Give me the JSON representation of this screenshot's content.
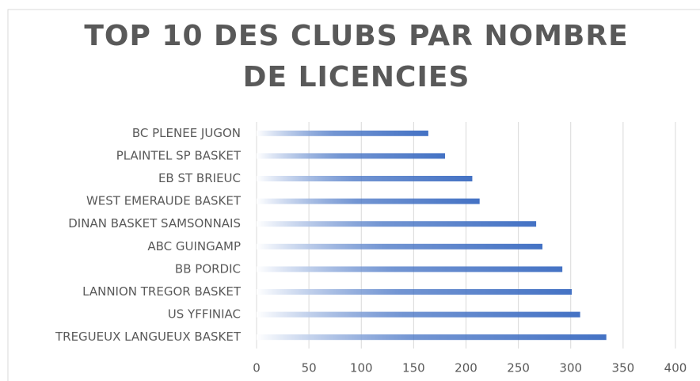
{
  "chart_data": {
    "type": "bar",
    "orientation": "horizontal",
    "title": "TOP 10 DES CLUBS PAR NOMBRE DE LICENCIES",
    "categories": [
      "BC PLENEE JUGON",
      "PLAINTEL SP BASKET",
      "EB ST BRIEUC",
      "WEST EMERAUDE BASKET",
      "DINAN BASKET SAMSONNAIS",
      "ABC GUINGAMP",
      "BB PORDIC",
      "LANNION TREGOR BASKET",
      "US YFFINIAC",
      "TREGUEUX LANGUEUX BASKET"
    ],
    "values": [
      164,
      180,
      206,
      213,
      267,
      273,
      292,
      301,
      309,
      334
    ],
    "color": "#4472c4",
    "xlim": [
      0,
      400
    ],
    "xticks": [
      0,
      50,
      100,
      150,
      200,
      250,
      300,
      350,
      400
    ],
    "grid": true
  }
}
